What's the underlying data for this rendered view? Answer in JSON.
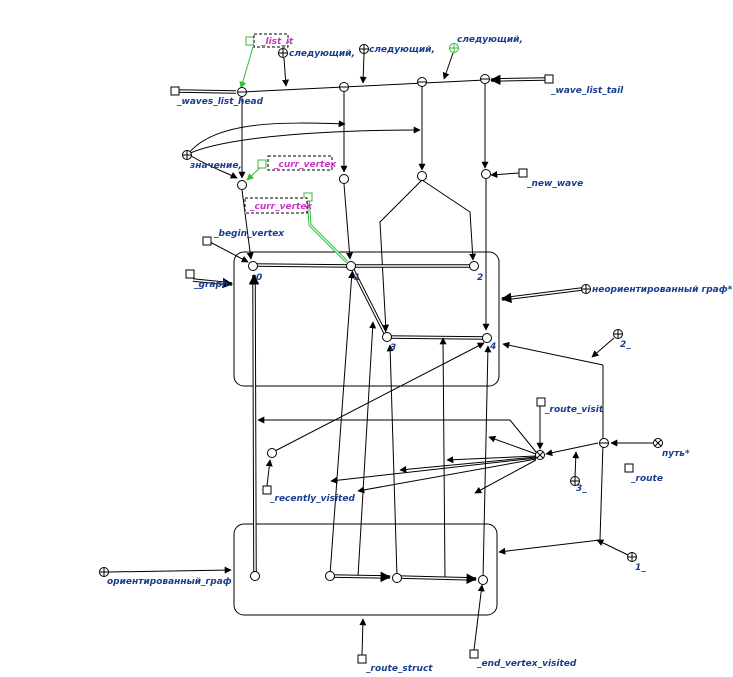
{
  "labels": {
    "list_it": "_list_it",
    "next_1": "следующий,",
    "next_2": "следующий,",
    "next_3": "следующий,",
    "waves_list_head": "_waves_list_head",
    "wave_list_tail": "_wave_list_tail",
    "value": "значение,",
    "curr_vertex_a": "_curr_vertex",
    "curr_vertex_b": "_curr_vertex",
    "new_wave": "_new_wave",
    "begin_vertex": "_begin_vertex",
    "graph": "_graph",
    "undirected_graph": "неориентированный граф*",
    "num_2": "2_",
    "route_visit": "_route_visit",
    "path": "путь*",
    "route": "_route",
    "num_3": "3_",
    "recently_visited": "_recently_visited",
    "directed_graph": "ориентированный_граф",
    "num_1": "1_",
    "route_struct": "_route_struct",
    "end_vertex_visited": "_end_vertex_visited"
  },
  "vertex_numbers": [
    "0",
    "1",
    "2",
    "3",
    "4"
  ],
  "colors": {
    "line": "#000000",
    "label": "#1a3d8f",
    "highlight": "#33bb33",
    "magenta": "#cc33cc"
  }
}
